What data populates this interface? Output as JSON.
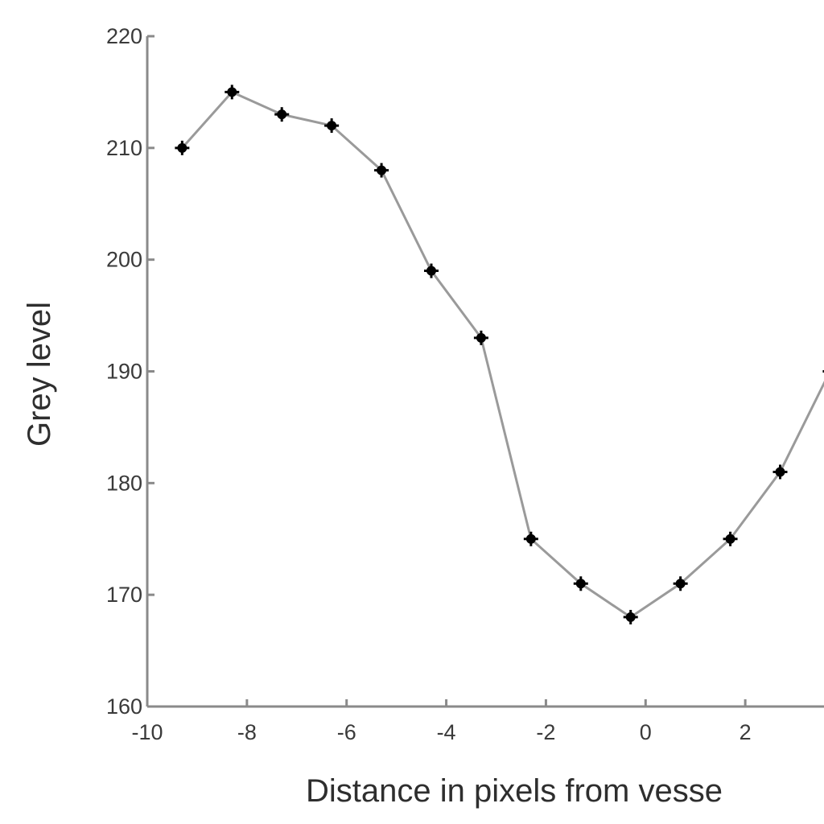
{
  "chart_data": {
    "type": "line",
    "title": "",
    "xlabel": "Distance in pixels from vesse",
    "ylabel": "Grey level",
    "xlim": [
      -10,
      4
    ],
    "ylim": [
      160,
      220
    ],
    "xticks": [
      -10,
      -8,
      -6,
      -4,
      -2,
      0,
      2
    ],
    "yticks": [
      160,
      170,
      180,
      190,
      200,
      210,
      220
    ],
    "grid": false,
    "series": [
      {
        "x": [
          -9.3,
          -8.3,
          -7.3,
          -6.3,
          -5.3,
          -4.3,
          -3.3,
          -2.3,
          -1.3,
          -0.3,
          0.7,
          1.7,
          2.7,
          3.7
        ],
        "values": [
          210,
          215,
          213,
          212,
          208,
          199,
          193,
          175,
          171,
          168,
          171,
          175,
          181,
          190
        ],
        "color": "#9a9a9a",
        "marker_color": "#000000"
      }
    ]
  }
}
